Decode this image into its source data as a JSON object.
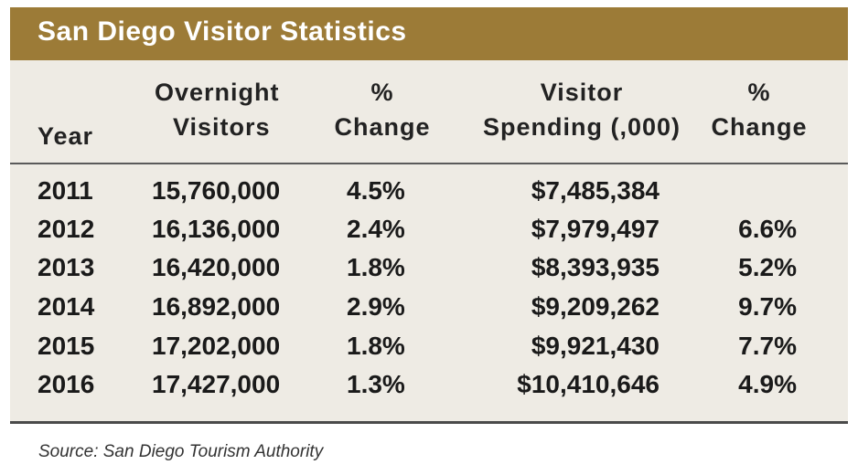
{
  "title": "San Diego Visitor Statistics",
  "headers": {
    "year": "Year",
    "visitors_line1": "Overnight",
    "visitors_line2": "Visitors",
    "change1_line1": "%",
    "change1_line2": "Change",
    "spending_line1": "Visitor",
    "spending_line2": "Spending (,000)",
    "change2_line1": "%",
    "change2_line2": "Change"
  },
  "rows": [
    {
      "year": "2011",
      "visitors": "15,760,000",
      "visitors_change": "4.5%",
      "spending": "$7,485,384",
      "spending_change": ""
    },
    {
      "year": "2012",
      "visitors": "16,136,000",
      "visitors_change": "2.4%",
      "spending": "$7,979,497",
      "spending_change": "6.6%"
    },
    {
      "year": "2013",
      "visitors": "16,420,000",
      "visitors_change": "1.8%",
      "spending": "$8,393,935",
      "spending_change": "5.2%"
    },
    {
      "year": "2014",
      "visitors": "16,892,000",
      "visitors_change": "2.9%",
      "spending": "$9,209,262",
      "spending_change": "9.7%"
    },
    {
      "year": "2015",
      "visitors": "17,202,000",
      "visitors_change": "1.8%",
      "spending": "$9,921,430",
      "spending_change": "7.7%"
    },
    {
      "year": "2016",
      "visitors": "17,427,000",
      "visitors_change": "1.3%",
      "spending": "$10,410,646",
      "spending_change": "4.9%"
    }
  ],
  "source": "Source: San Diego Tourism Authority",
  "colors": {
    "title_bar": "#9c7b37",
    "table_background": "#eeebe4"
  }
}
